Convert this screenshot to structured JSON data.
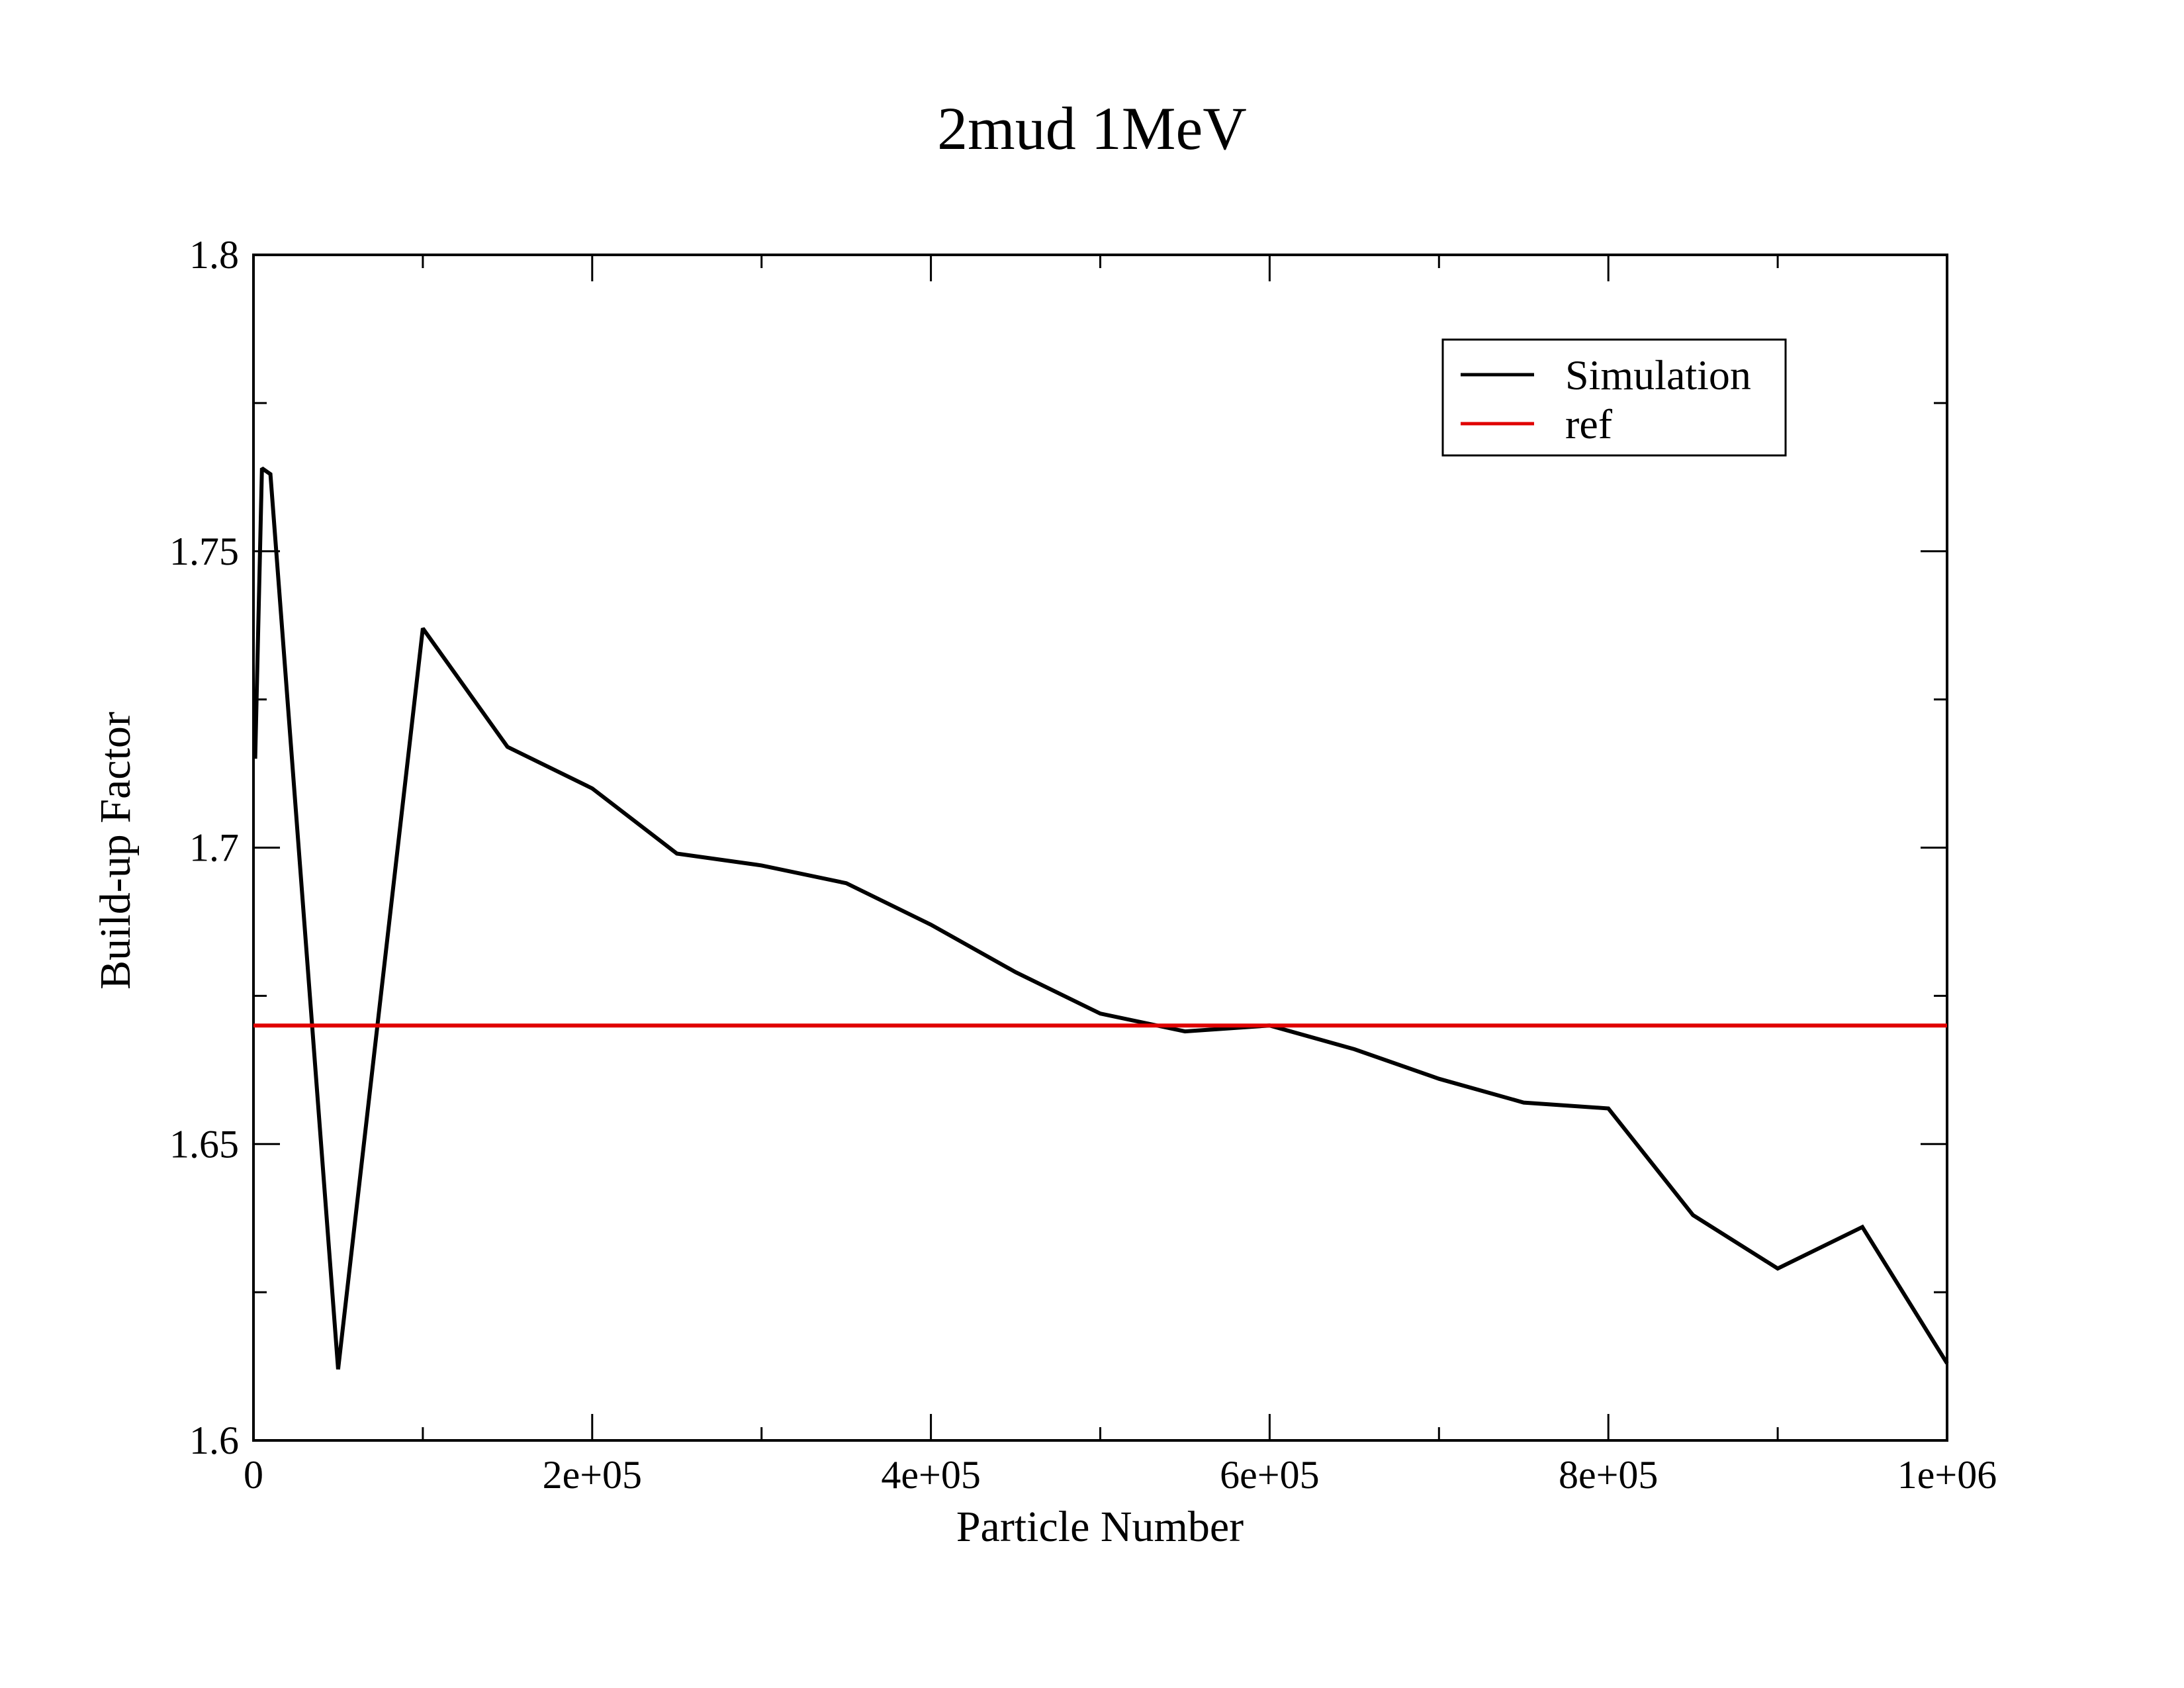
{
  "chart_data": {
    "type": "line",
    "title": "2mud 1MeV",
    "xlabel": "Particle Number",
    "ylabel": "Build-up Factor",
    "xlim": [
      0,
      1000000
    ],
    "ylim": [
      1.6,
      1.8
    ],
    "x_major_ticks": [
      0,
      200000,
      400000,
      600000,
      800000,
      1000000
    ],
    "x_tick_labels": [
      "0",
      "2e+05",
      "4e+05",
      "6e+05",
      "8e+05",
      "1e+06"
    ],
    "x_minor_ticks": [
      100000,
      300000,
      500000,
      700000,
      900000
    ],
    "y_major_ticks": [
      1.6,
      1.65,
      1.7,
      1.75,
      1.8
    ],
    "y_tick_labels": [
      "1.6",
      "1.65",
      "1.7",
      "1.75",
      "1.8"
    ],
    "y_minor_ticks": [
      1.625,
      1.675,
      1.725,
      1.775
    ],
    "grid": false,
    "legend_position": "top-right",
    "series": [
      {
        "name": "Simulation",
        "color": "#000000",
        "x": [
          1000,
          5000,
          10000,
          50000,
          100000,
          150000,
          200000,
          250000,
          300000,
          350000,
          400000,
          450000,
          500000,
          550000,
          600000,
          650000,
          700000,
          750000,
          800000,
          850000,
          900000,
          950000,
          1000000
        ],
        "y": [
          1.715,
          1.764,
          1.763,
          1.612,
          1.737,
          1.717,
          1.71,
          1.699,
          1.697,
          1.694,
          1.687,
          1.679,
          1.672,
          1.669,
          1.67,
          1.666,
          1.661,
          1.657,
          1.656,
          1.638,
          1.629,
          1.636,
          1.613
        ]
      },
      {
        "name": "ref",
        "color": "#e00000",
        "x": [
          0,
          1000000
        ],
        "y": [
          1.67,
          1.67
        ]
      }
    ]
  }
}
